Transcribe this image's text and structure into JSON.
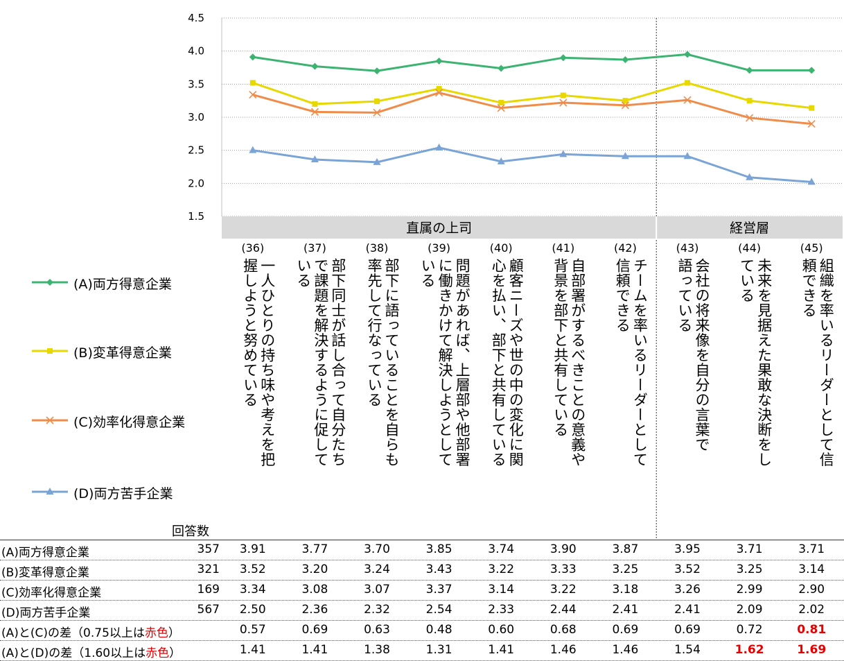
{
  "chart_data": {
    "type": "line",
    "categories": [
      "(36)",
      "(37)",
      "(38)",
      "(39)",
      "(40)",
      "(41)",
      "(42)",
      "(43)",
      "(44)",
      "(45)"
    ],
    "category_texts": [
      "握しようと努めている",
      "いる",
      "率先して行なっている",
      "いる",
      "心を払い、部下と共有している",
      "背景を部下と共有している",
      "信頼できる",
      "語っている",
      "ている",
      "頼できる"
    ],
    "category_texts_main": [
      "一人ひとりの持ち味や考えを把",
      "部下同士が話し合って自分たち",
      "部下に語っていることを自らも",
      "問題があれば、上層部や他部署",
      "顧客ニーズや世の中の変化に関",
      "自部署がするべきことの意義や",
      "チームを率いるリーダーとして",
      "会社の将来像を自分の言葉で",
      "未来を見据えた果敢な決断をし",
      "組織を率いるリーダーとして信"
    ],
    "category_texts_cont": [
      "",
      "で課題を解決するように促して",
      "",
      "に働きかけて解決しようとして",
      "",
      "",
      "",
      "",
      "",
      ""
    ],
    "groups": [
      {
        "label": "直属の上司",
        "span": [
          0,
          6
        ]
      },
      {
        "label": "経営層",
        "span": [
          7,
          9
        ]
      }
    ],
    "ylim": [
      1.5,
      4.5
    ],
    "yticks": [
      "1.5",
      "2.0",
      "2.5",
      "3.0",
      "3.5",
      "4.0",
      "4.5"
    ],
    "grid": true,
    "series": [
      {
        "name": "(A)両方得意企業",
        "color": "#3cb371",
        "marker": "diamond",
        "n": "357",
        "values": [
          3.91,
          3.77,
          3.7,
          3.85,
          3.74,
          3.9,
          3.87,
          3.95,
          3.71,
          3.71
        ]
      },
      {
        "name": "(B)変革得意企業",
        "color": "#e6d800",
        "marker": "square",
        "n": "321",
        "values": [
          3.52,
          3.2,
          3.24,
          3.43,
          3.22,
          3.33,
          3.25,
          3.52,
          3.25,
          3.14
        ]
      },
      {
        "name": "(C)効率化得意企業",
        "color": "#f08c4a",
        "marker": "x",
        "n": "169",
        "values": [
          3.34,
          3.08,
          3.07,
          3.37,
          3.14,
          3.22,
          3.18,
          3.26,
          2.99,
          2.9
        ]
      },
      {
        "name": "(D)両方苦手企業",
        "color": "#7aa3d6",
        "marker": "triangle",
        "n": "567",
        "values": [
          2.5,
          2.36,
          2.32,
          2.54,
          2.33,
          2.44,
          2.41,
          2.41,
          2.09,
          2.02
        ]
      }
    ]
  },
  "table": {
    "count_header": "回答数",
    "rows": [
      {
        "name": "(A)両方得意企業",
        "n": "357",
        "values": [
          "3.91",
          "3.77",
          "3.70",
          "3.85",
          "3.74",
          "3.90",
          "3.87",
          "3.95",
          "3.71",
          "3.71"
        ]
      },
      {
        "name": "(B)変革得意企業",
        "n": "321",
        "values": [
          "3.52",
          "3.20",
          "3.24",
          "3.43",
          "3.22",
          "3.33",
          "3.25",
          "3.52",
          "3.25",
          "3.14"
        ]
      },
      {
        "name": "(C)効率化得意企業",
        "n": "169",
        "values": [
          "3.34",
          "3.08",
          "3.07",
          "3.37",
          "3.14",
          "3.22",
          "3.18",
          "3.26",
          "2.99",
          "2.90"
        ]
      },
      {
        "name": "(D)両方苦手企業",
        "n": "567",
        "values": [
          "2.50",
          "2.36",
          "2.32",
          "2.54",
          "2.33",
          "2.44",
          "2.41",
          "2.41",
          "2.09",
          "2.02"
        ]
      }
    ],
    "diff_rows": [
      {
        "name_pre": "(A)と(C)の差（0.75以上は",
        "name_red": "赤色",
        "name_post": "）",
        "values": [
          "0.57",
          "0.69",
          "0.63",
          "0.48",
          "0.60",
          "0.68",
          "0.69",
          "0.69",
          "0.72",
          "0.81"
        ],
        "highlight": [
          false,
          false,
          false,
          false,
          false,
          false,
          false,
          false,
          false,
          true
        ]
      },
      {
        "name_pre": "(A)と(D)の差（1.60以上は",
        "name_red": "赤色",
        "name_post": "）",
        "values": [
          "1.41",
          "1.41",
          "1.38",
          "1.31",
          "1.41",
          "1.46",
          "1.46",
          "1.54",
          "1.62",
          "1.69"
        ],
        "highlight": [
          false,
          false,
          false,
          false,
          false,
          false,
          false,
          false,
          true,
          true
        ]
      }
    ]
  },
  "colors": {
    "highlight": "#e60000",
    "group_band": "#d9d9d9",
    "grid": "#999999"
  }
}
